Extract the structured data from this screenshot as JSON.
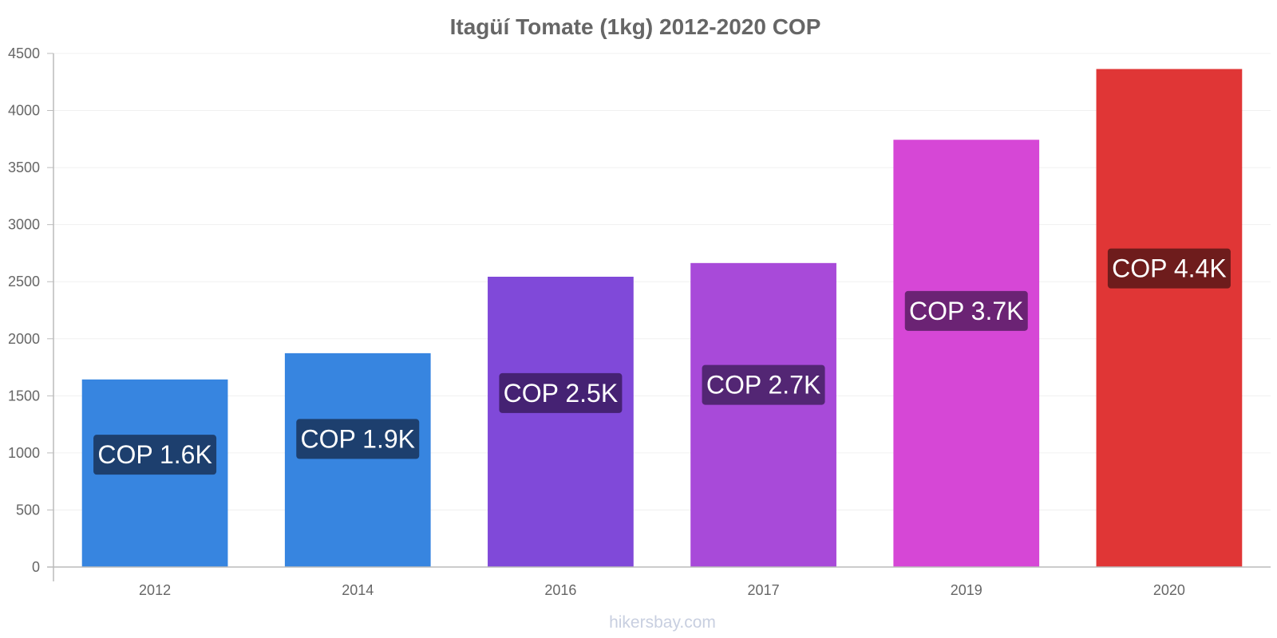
{
  "chart_data": {
    "type": "bar",
    "title": "Itagüí Tomate (1kg) 2012-2020 COP",
    "categories": [
      "2012",
      "2014",
      "2016",
      "2017",
      "2019",
      "2020"
    ],
    "values": [
      1640,
      1870,
      2540,
      2660,
      3740,
      4360
    ],
    "data_labels": [
      "COP 1.6K",
      "COP 1.9K",
      "COP 2.5K",
      "COP 2.7K",
      "COP 3.7K",
      "COP 4.4K"
    ],
    "bar_colors": [
      "#3785e0",
      "#3785e0",
      "#8049d9",
      "#a84ad9",
      "#d647d6",
      "#e03636"
    ],
    "label_bg_colors": [
      "#1d3f6e",
      "#1d3f6e",
      "#452273",
      "#532674",
      "#6b2374",
      "#6e1c1c"
    ],
    "ylim": [
      0,
      4500
    ],
    "yticks": [
      0,
      500,
      1000,
      1500,
      2000,
      2500,
      3000,
      3500,
      4000,
      4500
    ],
    "xlabel": "",
    "ylabel": "",
    "grid": true,
    "legend": "none"
  },
  "watermark": "hikersbay.com"
}
